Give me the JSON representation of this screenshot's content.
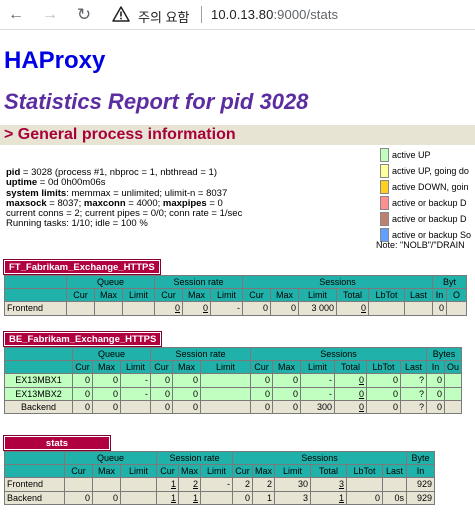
{
  "browser": {
    "warning_label": "주의 요함",
    "url_host": "10.0.13.80",
    "url_path": ":9000/stats"
  },
  "page": {
    "title": "HAProxy",
    "subtitle": "Statistics Report for pid 3028",
    "section_title": "> General process information"
  },
  "info": {
    "line1_key": "pid",
    "line1_val": " = 3028 (process #1, nbproc = 1, nbthread = 1)",
    "line2_key": "uptime",
    "line2_val": " = 0d 0h00m06s",
    "line3_key": "system limits",
    "line3_val": ": memmax = unlimited; ulimit-n = 8037",
    "line4_key": "maxsock",
    "line4_val": " = 8037; ",
    "line4_key2": "maxconn",
    "line4_val2": " = 4000; ",
    "line4_key3": "maxpipes",
    "line4_val3": " = 0",
    "line5": "current conns = 2; current pipes = 0/0; conn rate = 1/sec",
    "line6": "Running tasks: 1/10; idle = 100 %"
  },
  "legend": {
    "items": [
      {
        "label": "active UP",
        "color": "#c0ffc0"
      },
      {
        "label": "active UP, going do",
        "color": "#ffffa0"
      },
      {
        "label": "active DOWN, goin",
        "color": "#ffd020"
      },
      {
        "label": "active or backup D",
        "color": "#ff9090"
      },
      {
        "label": "active or backup D",
        "color": "#c08070"
      },
      {
        "label": "active or backup So",
        "color": "#60a0ff"
      }
    ],
    "note": "Note: \"NOLB\"/\"DRAIN"
  },
  "headers": {
    "queue": "Queue",
    "session_rate": "Session rate",
    "sessions": "Sessions",
    "bytes_short": "Byt",
    "bytes_mid": "Bytes",
    "bytes_stats": "Byte",
    "cur": "Cur",
    "max": "Max",
    "limit": "Limit",
    "total": "Total",
    "lbtot": "LbTot",
    "last": "Last",
    "in": "In",
    "out_short": "O",
    "out_mid": "Ou"
  },
  "proxies": {
    "ft": {
      "name": "FT_Fabrikam_Exchange_HTTPS",
      "rows": [
        {
          "name": "Frontend",
          "q_cur": "",
          "q_max": "",
          "q_limit": "",
          "sr_cur": "0",
          "sr_max": "0",
          "sr_limit": "-",
          "s_cur": "0",
          "s_max": "0",
          "s_limit": "3 000",
          "s_total": "0",
          "s_lbtot": "",
          "s_last": "",
          "b_in": "0",
          "b_out": ""
        }
      ]
    },
    "be": {
      "name": "BE_Fabrikam_Exchange_HTTPS",
      "rows": [
        {
          "name": "EX13MBX1",
          "q_cur": "0",
          "q_max": "0",
          "q_limit": "-",
          "sr_cur": "0",
          "sr_max": "0",
          "sr_limit": "",
          "s_cur": "0",
          "s_max": "0",
          "s_limit": "-",
          "s_total": "0",
          "s_lbtot": "0",
          "s_last": "?",
          "b_in": "0",
          "b_out": ""
        },
        {
          "name": "EX13MBX2",
          "q_cur": "0",
          "q_max": "0",
          "q_limit": "-",
          "sr_cur": "0",
          "sr_max": "0",
          "sr_limit": "",
          "s_cur": "0",
          "s_max": "0",
          "s_limit": "-",
          "s_total": "0",
          "s_lbtot": "0",
          "s_last": "?",
          "b_in": "0",
          "b_out": ""
        },
        {
          "name": "Backend",
          "q_cur": "0",
          "q_max": "0",
          "q_limit": "",
          "sr_cur": "0",
          "sr_max": "0",
          "sr_limit": "",
          "s_cur": "0",
          "s_max": "0",
          "s_limit": "300",
          "s_total": "0",
          "s_lbtot": "0",
          "s_last": "?",
          "b_in": "0",
          "b_out": ""
        }
      ]
    },
    "stats": {
      "name": "stats",
      "rows": [
        {
          "name": "Frontend",
          "q_cur": "",
          "q_max": "",
          "q_limit": "",
          "sr_cur": "1",
          "sr_max": "2",
          "sr_limit": "-",
          "s_cur": "2",
          "s_max": "2",
          "s_limit": "30",
          "s_total": "3",
          "s_lbtot": "",
          "s_last": "",
          "b_in": "929"
        },
        {
          "name": "Backend",
          "q_cur": "0",
          "q_max": "0",
          "q_limit": "",
          "sr_cur": "1",
          "sr_max": "1",
          "sr_limit": "",
          "s_cur": "0",
          "s_max": "1",
          "s_limit": "3",
          "s_total": "1",
          "s_lbtot": "0",
          "s_last": "0s",
          "b_in": "929"
        }
      ]
    }
  }
}
